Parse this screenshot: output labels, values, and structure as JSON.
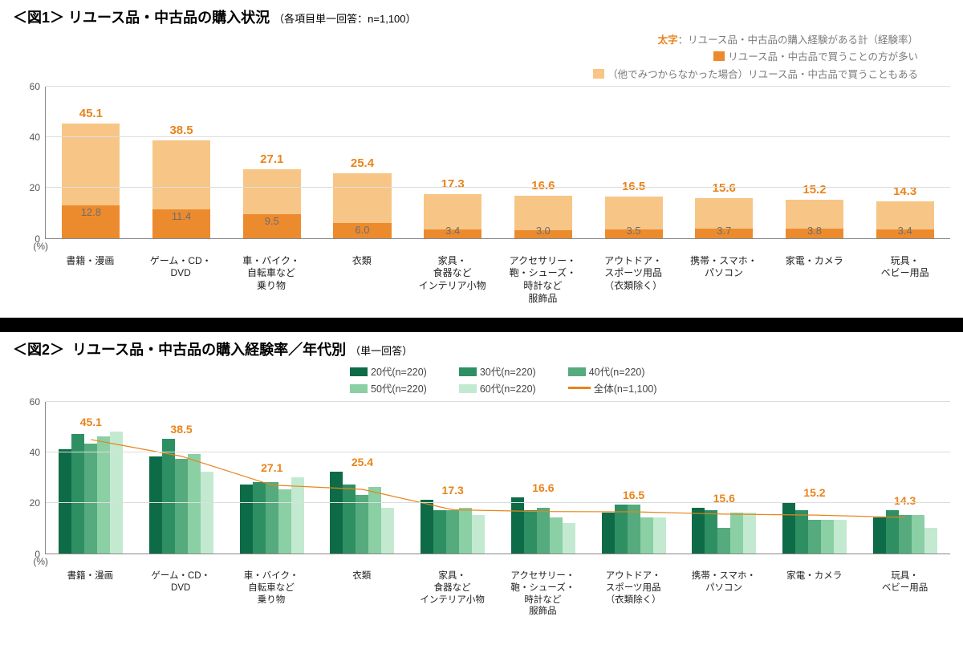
{
  "colors": {
    "dark_orange": "#ec8b2e",
    "light_orange": "#f7c686",
    "total_text": "#e8841b",
    "inner_text": "#6d6d6d",
    "gridline": "#dddddd",
    "axis": "#888888",
    "green_20s": "#0e6b47",
    "green_30s": "#2e8f63",
    "green_40s": "#55ab7d",
    "green_50s": "#8bcfa5",
    "green_60s": "#c3ead0",
    "line": "#e8841b"
  },
  "figure1": {
    "title_prefix": "＜図1＞",
    "title": "リユース品・中古品の購入状況",
    "subtitle": "（各項目単一回答：n=1,100）",
    "y_axis_label": "(%)",
    "ymax": 60,
    "yticks": [
      0,
      20,
      40,
      60
    ],
    "legend": {
      "bold_key": "太字",
      "bold_desc": "：リユース品・中古品の購入経験がある計（経験率）",
      "dark": "リユース品・中古品で買うことの方が多い",
      "light": "（他でみつからなかった場合）リユース品・中古品で買うこともある"
    },
    "categories": [
      {
        "label": "書籍・漫画",
        "dark": 12.8,
        "total": 45.1
      },
      {
        "label": "ゲーム・CD・\nDVD",
        "dark": 11.4,
        "total": 38.5
      },
      {
        "label": "車・バイク・\n自転車など\n乗り物",
        "dark": 9.5,
        "total": 27.1
      },
      {
        "label": "衣類",
        "dark": 6.0,
        "total": 25.4
      },
      {
        "label": "家具・\n食器など\nインテリア小物",
        "dark": 3.4,
        "total": 17.3
      },
      {
        "label": "アクセサリー・\n鞄・シューズ・\n時計など\n服飾品",
        "dark": 3.0,
        "total": 16.6
      },
      {
        "label": "アウトドア・\nスポーツ用品\n（衣類除く）",
        "dark": 3.5,
        "total": 16.5
      },
      {
        "label": "携帯・スマホ・\nパソコン",
        "dark": 3.7,
        "total": 15.6
      },
      {
        "label": "家電・カメラ",
        "dark": 3.8,
        "total": 15.2
      },
      {
        "label": "玩具・\nベビー用品",
        "dark": 3.4,
        "total": 14.3
      }
    ]
  },
  "figure2": {
    "title_prefix": "＜図2＞",
    "title": "リユース品・中古品の購入経験率／年代別",
    "subtitle": "（単一回答）",
    "y_axis_label": "(%)",
    "ymax": 60,
    "yticks": [
      0,
      20,
      40,
      60
    ],
    "legend_items": [
      {
        "key": "20s",
        "label": "20代(n=220)"
      },
      {
        "key": "30s",
        "label": "30代(n=220)"
      },
      {
        "key": "40s",
        "label": "40代(n=220)"
      },
      {
        "key": "50s",
        "label": "50代(n=220)"
      },
      {
        "key": "60s",
        "label": "60代(n=220)"
      },
      {
        "key": "line",
        "label": "全体(n=1,100)"
      }
    ],
    "series_keys": [
      "20s",
      "30s",
      "40s",
      "50s",
      "60s"
    ],
    "categories": [
      {
        "label": "書籍・漫画",
        "total": 45.1,
        "20s": 41,
        "30s": 47,
        "40s": 43,
        "50s": 46,
        "60s": 48
      },
      {
        "label": "ゲーム・CD・\nDVD",
        "total": 38.5,
        "20s": 38,
        "30s": 45,
        "40s": 37,
        "50s": 39,
        "60s": 32
      },
      {
        "label": "車・バイク・\n自転車など\n乗り物",
        "total": 27.1,
        "20s": 27,
        "30s": 28,
        "40s": 28,
        "50s": 25,
        "60s": 30
      },
      {
        "label": "衣類",
        "total": 25.4,
        "20s": 32,
        "30s": 27,
        "40s": 23,
        "50s": 26,
        "60s": 18
      },
      {
        "label": "家具・\n食器など\nインテリア小物",
        "total": 17.3,
        "20s": 21,
        "30s": 17,
        "40s": 17,
        "50s": 18,
        "60s": 15
      },
      {
        "label": "アクセサリー・\n鞄・シューズ・\n時計など\n服飾品",
        "total": 16.6,
        "20s": 22,
        "30s": 17,
        "40s": 18,
        "50s": 14,
        "60s": 12
      },
      {
        "label": "アウトドア・\nスポーツ用品\n（衣類除く）",
        "total": 16.5,
        "20s": 16,
        "30s": 19,
        "40s": 19,
        "50s": 14,
        "60s": 14
      },
      {
        "label": "携帯・スマホ・\nパソコン",
        "total": 15.6,
        "20s": 18,
        "30s": 17,
        "40s": 10,
        "50s": 16,
        "60s": 16
      },
      {
        "label": "家電・カメラ",
        "total": 15.2,
        "20s": 20,
        "30s": 17,
        "40s": 13,
        "50s": 13,
        "60s": 13
      },
      {
        "label": "玩具・\nベビー用品",
        "total": 14.3,
        "20s": 14,
        "30s": 17,
        "40s": 15,
        "50s": 15,
        "60s": 10
      }
    ]
  }
}
